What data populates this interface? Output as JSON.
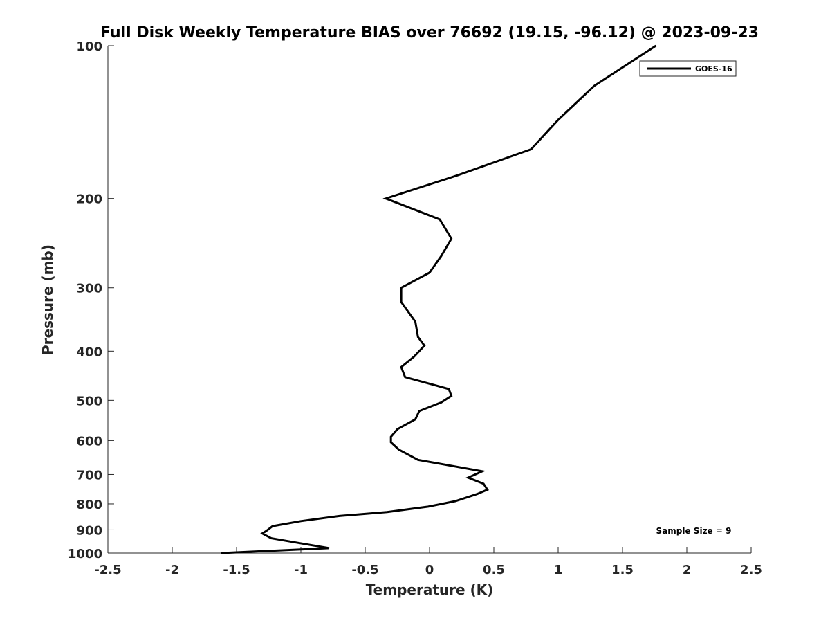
{
  "chart_data": {
    "type": "line",
    "title": "Full Disk Weekly Temperature BIAS over 76692 (19.15, -96.12) @ 2023-09-23",
    "xlabel": "Temperature (K)",
    "ylabel": "Pressure (mb)",
    "xlim": [
      -2.5,
      2.5
    ],
    "ylim": [
      1000,
      100
    ],
    "yscale": "log",
    "x_ticks": [
      -2.5,
      -2,
      -1.5,
      -1,
      -0.5,
      0,
      0.5,
      1,
      1.5,
      2,
      2.5
    ],
    "x_tick_labels": [
      "-2.5",
      "-2",
      "-1.5",
      "-1",
      "-0.5",
      "0",
      "0.5",
      "1",
      "1.5",
      "2",
      "2.5"
    ],
    "y_ticks": [
      100,
      200,
      300,
      400,
      500,
      600,
      700,
      800,
      900,
      1000
    ],
    "y_tick_labels": [
      "100",
      "200",
      "300",
      "400",
      "500",
      "600",
      "700",
      "800",
      "900",
      "1000"
    ],
    "grid": false,
    "legend": {
      "placement": "top-right",
      "entries": [
        "GOES-16"
      ]
    },
    "annotation": "Sample Size = 9",
    "series": [
      {
        "name": "GOES-16",
        "color": "#000000",
        "points": [
          {
            "x": 1.76,
            "p": 100
          },
          {
            "x": 1.28,
            "p": 120
          },
          {
            "x": 1.0,
            "p": 140
          },
          {
            "x": 0.79,
            "p": 160
          },
          {
            "x": 0.22,
            "p": 180
          },
          {
            "x": -0.34,
            "p": 200
          },
          {
            "x": 0.08,
            "p": 220
          },
          {
            "x": 0.17,
            "p": 240
          },
          {
            "x": 0.09,
            "p": 260
          },
          {
            "x": 0.0,
            "p": 280
          },
          {
            "x": -0.22,
            "p": 300
          },
          {
            "x": -0.22,
            "p": 320
          },
          {
            "x": -0.11,
            "p": 350
          },
          {
            "x": -0.09,
            "p": 375
          },
          {
            "x": -0.04,
            "p": 390
          },
          {
            "x": -0.12,
            "p": 410
          },
          {
            "x": -0.22,
            "p": 430
          },
          {
            "x": -0.19,
            "p": 450
          },
          {
            "x": 0.15,
            "p": 475
          },
          {
            "x": 0.17,
            "p": 490
          },
          {
            "x": 0.09,
            "p": 505
          },
          {
            "x": -0.08,
            "p": 525
          },
          {
            "x": -0.11,
            "p": 545
          },
          {
            "x": -0.25,
            "p": 570
          },
          {
            "x": -0.3,
            "p": 590
          },
          {
            "x": -0.3,
            "p": 605
          },
          {
            "x": -0.24,
            "p": 625
          },
          {
            "x": -0.09,
            "p": 655
          },
          {
            "x": 0.41,
            "p": 690
          },
          {
            "x": 0.3,
            "p": 710
          },
          {
            "x": 0.42,
            "p": 730
          },
          {
            "x": 0.45,
            "p": 750
          },
          {
            "x": 0.37,
            "p": 765
          },
          {
            "x": 0.2,
            "p": 790
          },
          {
            "x": -0.01,
            "p": 810
          },
          {
            "x": -0.33,
            "p": 830
          },
          {
            "x": -0.7,
            "p": 845
          },
          {
            "x": -1.0,
            "p": 865
          },
          {
            "x": -1.22,
            "p": 885
          },
          {
            "x": -1.27,
            "p": 905
          },
          {
            "x": -1.3,
            "p": 915
          },
          {
            "x": -1.23,
            "p": 935
          },
          {
            "x": -1.02,
            "p": 955
          },
          {
            "x": -0.78,
            "p": 978
          },
          {
            "x": -1.62,
            "p": 1000
          }
        ]
      }
    ]
  }
}
